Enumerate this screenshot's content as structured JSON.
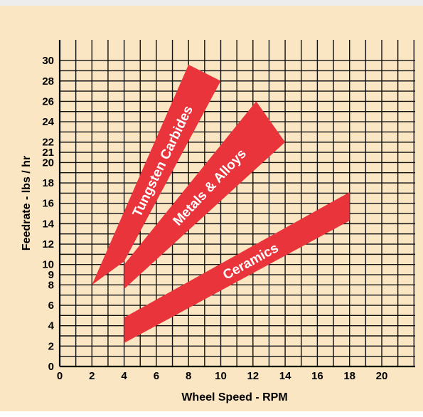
{
  "chart_data": {
    "type": "area",
    "title": "",
    "xlabel": "Wheel Speed - RPM",
    "ylabel": "Feedrate - lbs / hr",
    "xlim": [
      0,
      22
    ],
    "ylim": [
      0,
      30
    ],
    "x_ticks": [
      0,
      2,
      4,
      6,
      8,
      10,
      12,
      14,
      16,
      18,
      20
    ],
    "y_ticks": [
      0,
      2,
      4,
      6,
      8,
      9,
      10,
      12,
      14,
      16,
      18,
      20,
      21,
      22,
      24,
      26,
      28,
      30
    ],
    "grid": true,
    "colors": {
      "background": "#fbe6c3",
      "band": "#e8343a",
      "grid": "#111111",
      "label": "#ffffff"
    },
    "series": [
      {
        "name": "Tungsten Carbides",
        "polygon": [
          [
            2,
            8.0
          ],
          [
            8,
            29.6
          ],
          [
            10,
            28.0
          ],
          [
            4,
            10.3
          ]
        ]
      },
      {
        "name": "Metals & Alloys",
        "polygon": [
          [
            4,
            7.6
          ],
          [
            4,
            10.0
          ],
          [
            12.2,
            26.0
          ],
          [
            14,
            22.0
          ]
        ]
      },
      {
        "name": "Ceramics",
        "polygon": [
          [
            4,
            2.3
          ],
          [
            4,
            4.8
          ],
          [
            18,
            17.1
          ],
          [
            18,
            14.3
          ]
        ]
      }
    ]
  }
}
